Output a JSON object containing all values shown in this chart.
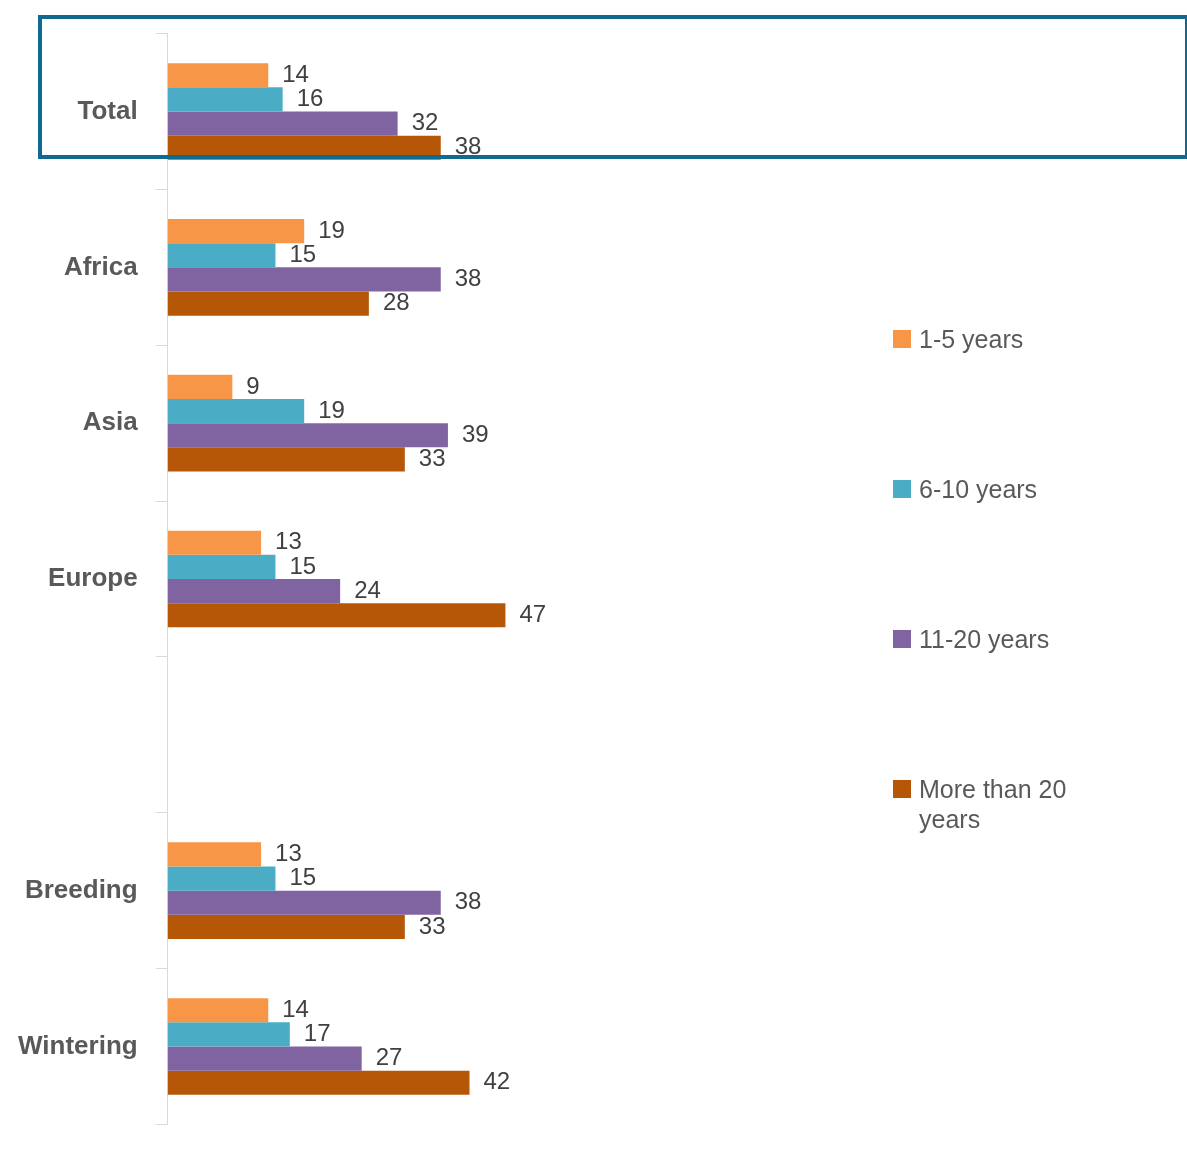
{
  "chart_data": {
    "type": "bar",
    "orientation": "horizontal",
    "categories": [
      "Total",
      "Africa",
      "Asia",
      "Europe",
      null,
      "Breeding",
      "Wintering"
    ],
    "series": [
      {
        "name": "1-5 years",
        "color": "#f79646",
        "values": [
          14,
          19,
          9,
          13,
          null,
          13,
          14
        ]
      },
      {
        "name": "6-10 years",
        "color": "#4bacc6",
        "values": [
          16,
          15,
          19,
          15,
          null,
          15,
          17
        ]
      },
      {
        "name": "11-20 years",
        "color": "#8064a2",
        "values": [
          32,
          38,
          39,
          24,
          null,
          38,
          27
        ]
      },
      {
        "name": "More than 20 years",
        "color": "#b65708",
        "values": [
          38,
          28,
          33,
          47,
          null,
          33,
          42
        ]
      }
    ],
    "data_labels": true,
    "legend": "right"
  }
}
